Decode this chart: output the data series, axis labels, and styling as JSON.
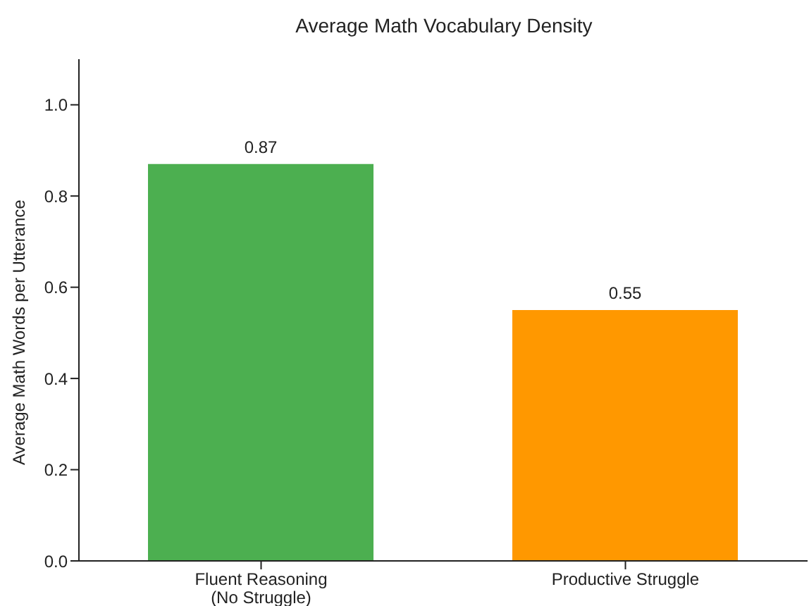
{
  "chart_data": {
    "type": "bar",
    "title": "Average Math Vocabulary Density",
    "ylabel": "Average Math Words per Utterance",
    "categories": [
      "Fluent Reasoning\n(No Struggle)",
      "Productive Struggle"
    ],
    "values": [
      0.87,
      0.55
    ],
    "colors": [
      "#4caf50",
      "#ff9800"
    ],
    "ylim": [
      0,
      1.1
    ],
    "yticks": [
      {
        "value": 0,
        "label": "0.0"
      },
      {
        "value": 0.2,
        "label": "0.2"
      },
      {
        "value": 0.4,
        "label": "0.4"
      },
      {
        "value": 0.6,
        "label": "0.6"
      },
      {
        "value": 0.8,
        "label": "0.8"
      },
      {
        "value": 1,
        "label": "1.0"
      }
    ],
    "data_labels": true
  }
}
